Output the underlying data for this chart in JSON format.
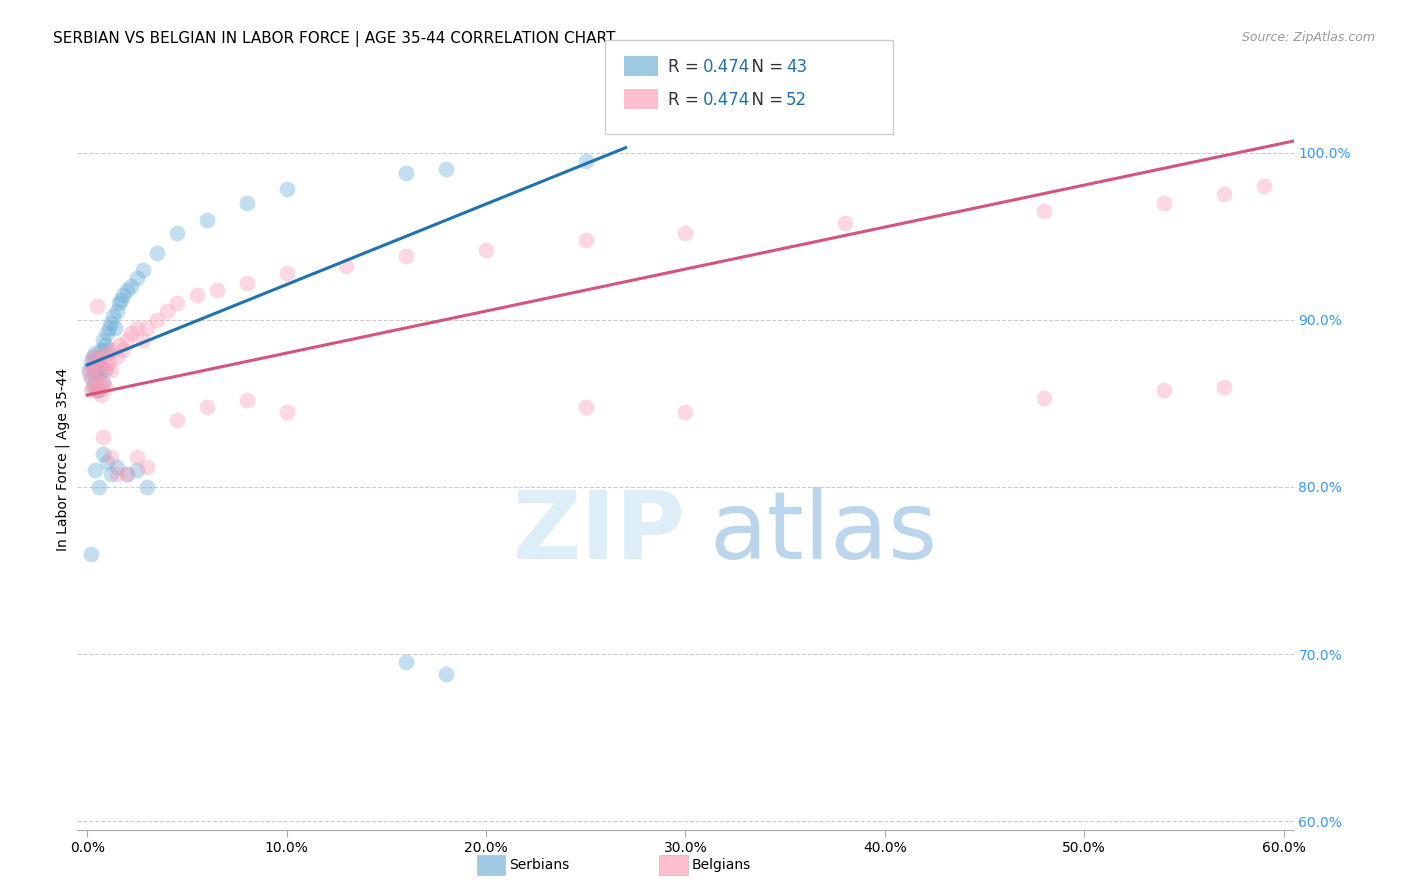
{
  "title": "SERBIAN VS BELGIAN IN LABOR FORCE | AGE 35-44 CORRELATION CHART",
  "source": "Source: ZipAtlas.com",
  "ylabel": "In Labor Force | Age 35-44",
  "xlim": [
    -0.005,
    0.605
  ],
  "ylim": [
    0.595,
    1.038
  ],
  "xticks": [
    0.0,
    0.1,
    0.2,
    0.3,
    0.4,
    0.5,
    0.6
  ],
  "xticklabels": [
    "0.0%",
    "10.0%",
    "20.0%",
    "30.0%",
    "40.0%",
    "50.0%",
    "60.0%"
  ],
  "yticks_right": [
    0.6,
    0.7,
    0.8,
    0.9,
    1.0
  ],
  "yticklabels_right": [
    "60.0%",
    "70.0%",
    "80.0%",
    "90.0%",
    "100.0%"
  ],
  "legend_r_serbian": "0.474",
  "legend_n_serbian": "43",
  "legend_r_belgian": "0.474",
  "legend_n_belgian": "52",
  "serbian_color": "#6baed6",
  "belgian_color": "#fc9cb4",
  "serbian_line_color": "#2171b5",
  "belgian_line_color": "#d6547a",
  "right_tick_color": "#3399ff",
  "background_color": "#ffffff",
  "grid_color": "#cccccc",
  "title_fontsize": 11,
  "axis_label_fontsize": 10,
  "tick_fontsize": 10,
  "source_fontsize": 9,
  "marker_size": 130,
  "marker_alpha": 0.4,
  "line_width": 2.2,
  "serbian_x": [
    0.001,
    0.002,
    0.002,
    0.003,
    0.003,
    0.003,
    0.004,
    0.004,
    0.004,
    0.005,
    0.005,
    0.005,
    0.006,
    0.006,
    0.006,
    0.007,
    0.007,
    0.008,
    0.008,
    0.009,
    0.009,
    0.01,
    0.01,
    0.011,
    0.012,
    0.013,
    0.014,
    0.015,
    0.016,
    0.017,
    0.018,
    0.02,
    0.022,
    0.025,
    0.028,
    0.035,
    0.045,
    0.06,
    0.08,
    0.1,
    0.16,
    0.18,
    0.25
  ],
  "serbian_y": [
    0.87,
    0.875,
    0.865,
    0.872,
    0.86,
    0.878,
    0.868,
    0.88,
    0.862,
    0.875,
    0.858,
    0.872,
    0.868,
    0.878,
    0.858,
    0.882,
    0.872,
    0.888,
    0.862,
    0.885,
    0.87,
    0.882,
    0.892,
    0.895,
    0.898,
    0.902,
    0.895,
    0.905,
    0.91,
    0.912,
    0.915,
    0.918,
    0.92,
    0.925,
    0.93,
    0.94,
    0.952,
    0.96,
    0.97,
    0.978,
    0.988,
    0.99,
    0.995
  ],
  "serbian_low_x": [
    0.002,
    0.004,
    0.006,
    0.008,
    0.01,
    0.012,
    0.015,
    0.02,
    0.025,
    0.03,
    0.16,
    0.18
  ],
  "serbian_low_y": [
    0.76,
    0.81,
    0.8,
    0.82,
    0.815,
    0.808,
    0.812,
    0.808,
    0.81,
    0.8,
    0.695,
    0.688
  ],
  "belgian_x": [
    0.001,
    0.002,
    0.002,
    0.003,
    0.003,
    0.004,
    0.004,
    0.005,
    0.005,
    0.006,
    0.006,
    0.007,
    0.007,
    0.008,
    0.008,
    0.009,
    0.01,
    0.01,
    0.011,
    0.012,
    0.013,
    0.015,
    0.016,
    0.018,
    0.02,
    0.022,
    0.025,
    0.028,
    0.03,
    0.035,
    0.04,
    0.045,
    0.055,
    0.065,
    0.08,
    0.1,
    0.13,
    0.16,
    0.2,
    0.25,
    0.3,
    0.38,
    0.48,
    0.54,
    0.57,
    0.59
  ],
  "belgian_y": [
    0.868,
    0.872,
    0.858,
    0.865,
    0.878,
    0.86,
    0.872,
    0.858,
    0.875,
    0.862,
    0.878,
    0.855,
    0.87,
    0.862,
    0.878,
    0.86,
    0.872,
    0.88,
    0.875,
    0.87,
    0.882,
    0.878,
    0.885,
    0.882,
    0.888,
    0.892,
    0.895,
    0.888,
    0.895,
    0.9,
    0.905,
    0.91,
    0.915,
    0.918,
    0.922,
    0.928,
    0.932,
    0.938,
    0.942,
    0.948,
    0.952,
    0.958,
    0.965,
    0.97,
    0.975,
    0.98
  ],
  "belgian_low_x": [
    0.005,
    0.008,
    0.012,
    0.015,
    0.02,
    0.025,
    0.03,
    0.045,
    0.06,
    0.08,
    0.1,
    0.25,
    0.3,
    0.48,
    0.54,
    0.57
  ],
  "belgian_low_y": [
    0.908,
    0.83,
    0.818,
    0.808,
    0.808,
    0.818,
    0.812,
    0.84,
    0.848,
    0.852,
    0.845,
    0.848,
    0.845,
    0.853,
    0.858,
    0.86
  ]
}
